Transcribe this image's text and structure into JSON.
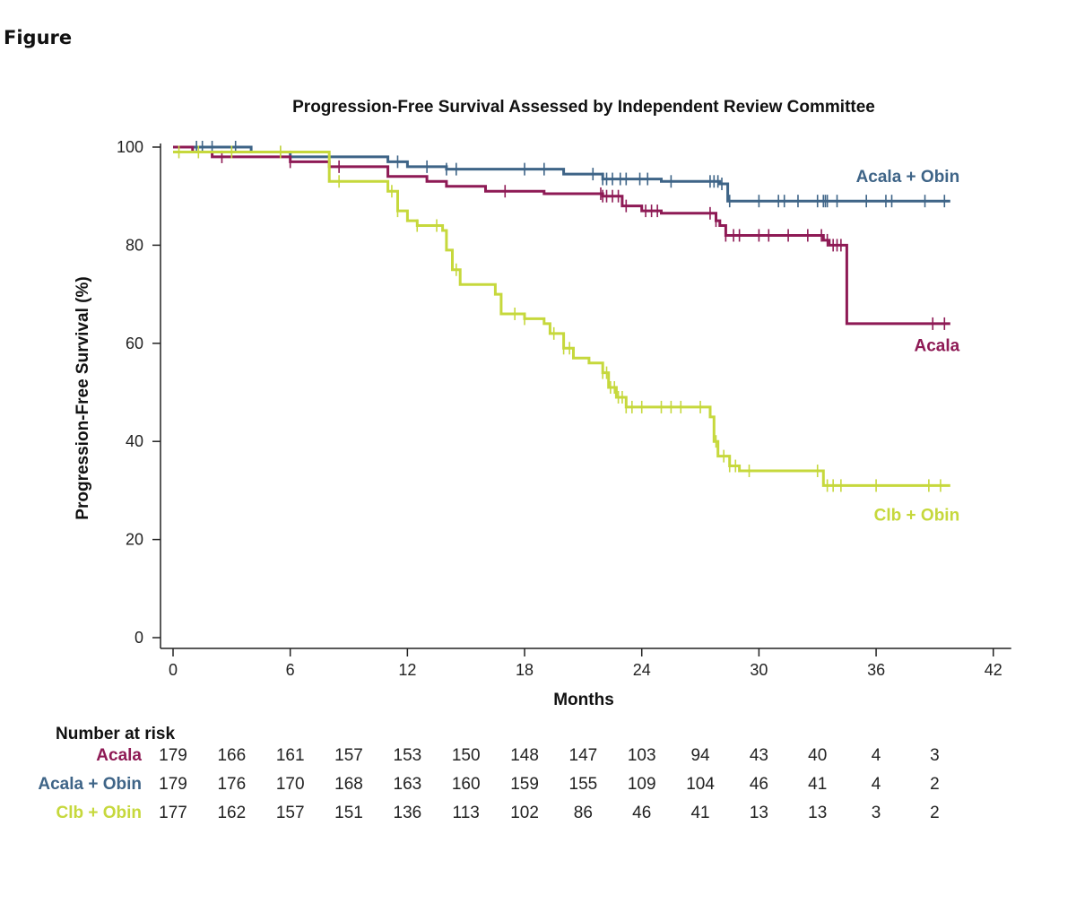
{
  "figure_label": "Figure",
  "chart_data": {
    "type": "line",
    "title": "Progression-Free Survival Assessed by Independent Review Committee",
    "xlabel": "Months",
    "ylabel": "Progression-Free Survival (%)",
    "xlim": [
      0,
      42
    ],
    "ylim": [
      0,
      100
    ],
    "xticks": [
      0,
      6,
      12,
      18,
      24,
      30,
      36,
      42
    ],
    "yticks": [
      0,
      20,
      40,
      60,
      80,
      100
    ],
    "series": [
      {
        "name": "Acala + Obin",
        "color": "#3e6487",
        "steps": [
          [
            0,
            100
          ],
          [
            4,
            99
          ],
          [
            6,
            98
          ],
          [
            11,
            97
          ],
          [
            12,
            96
          ],
          [
            14,
            95.5
          ],
          [
            20,
            94.5
          ],
          [
            22,
            93.5
          ],
          [
            25,
            93
          ],
          [
            28,
            92.5
          ],
          [
            28.4,
            89
          ],
          [
            39.8,
            89
          ]
        ],
        "censors": [
          1.2,
          1.5,
          2,
          3.2,
          5.5,
          6,
          11.5,
          13,
          14,
          14.5,
          18,
          19,
          21.5,
          22,
          22.2,
          22.5,
          22.9,
          23.2,
          23.9,
          24.3,
          25.5,
          27.5,
          27.7,
          27.9,
          28.1,
          28.5,
          30,
          31,
          31.3,
          32,
          33,
          33.3,
          33.4,
          33.5,
          34,
          35.5,
          36.5,
          36.8,
          38.5,
          39.5
        ],
        "label_pos": [
          40,
          94
        ]
      },
      {
        "name": "Acala",
        "color": "#8e1a55",
        "steps": [
          [
            0,
            100
          ],
          [
            1,
            99
          ],
          [
            2,
            98
          ],
          [
            6,
            97
          ],
          [
            8,
            96
          ],
          [
            11,
            94
          ],
          [
            13,
            93
          ],
          [
            14,
            92
          ],
          [
            16,
            91
          ],
          [
            19,
            90.5
          ],
          [
            22,
            90
          ],
          [
            23,
            88
          ],
          [
            24,
            87
          ],
          [
            25,
            86.5
          ],
          [
            27.5,
            86.5
          ],
          [
            27.8,
            85
          ],
          [
            28,
            84
          ],
          [
            28.3,
            82
          ],
          [
            33,
            82
          ],
          [
            33.3,
            81
          ],
          [
            33.6,
            80
          ],
          [
            34.4,
            80
          ],
          [
            34.5,
            64
          ],
          [
            39.8,
            64
          ]
        ],
        "censors": [
          2.5,
          6,
          8.5,
          17,
          21.9,
          22,
          22.2,
          22.5,
          22.8,
          23.2,
          24.2,
          24.5,
          24.8,
          27.5,
          27.8,
          28.3,
          28.7,
          29,
          30,
          30.5,
          31.5,
          32.5,
          33.2,
          33.5,
          33.8,
          34,
          34.2,
          38.9,
          39.5
        ],
        "label_pos": [
          40,
          59.5
        ]
      },
      {
        "name": "Clb + Obin",
        "color": "#c6d83c",
        "steps": [
          [
            0,
            99
          ],
          [
            8,
            93
          ],
          [
            11,
            91
          ],
          [
            11.5,
            87
          ],
          [
            12,
            85
          ],
          [
            12.5,
            84
          ],
          [
            13.8,
            83
          ],
          [
            14,
            79
          ],
          [
            14.3,
            75
          ],
          [
            14.7,
            72
          ],
          [
            16.5,
            70
          ],
          [
            16.8,
            66
          ],
          [
            18,
            65
          ],
          [
            19,
            64
          ],
          [
            19.3,
            62
          ],
          [
            20,
            59
          ],
          [
            20.5,
            57
          ],
          [
            21.3,
            56
          ],
          [
            22,
            54
          ],
          [
            22.3,
            51
          ],
          [
            22.7,
            49
          ],
          [
            23.2,
            47
          ],
          [
            27.5,
            45
          ],
          [
            27.7,
            40
          ],
          [
            27.9,
            37
          ],
          [
            28.5,
            35
          ],
          [
            29,
            34
          ],
          [
            33.3,
            31
          ],
          [
            39.8,
            31
          ]
        ],
        "censors": [
          0.3,
          1.3,
          3,
          5.5,
          8.5,
          11.2,
          11.5,
          12.5,
          13.5,
          14.5,
          17.5,
          18,
          19.5,
          20,
          20.3,
          22,
          22.2,
          22.4,
          22.6,
          22.8,
          23,
          23.2,
          23.5,
          24,
          25,
          25.5,
          26,
          27,
          27.8,
          28.2,
          28.5,
          28.8,
          29.5,
          33,
          33.5,
          33.8,
          34.2,
          36,
          38.7,
          39.3
        ],
        "label_pos": [
          40,
          25
        ]
      }
    ],
    "risk_table": {
      "title": "Number at risk",
      "times": [
        0,
        3,
        6,
        9,
        12,
        15,
        18,
        21,
        24,
        27,
        30,
        33,
        36,
        39
      ],
      "rows": [
        {
          "name": "Acala",
          "color": "#8e1a55",
          "values": [
            179,
            166,
            161,
            157,
            153,
            150,
            148,
            147,
            103,
            94,
            43,
            40,
            4,
            3
          ]
        },
        {
          "name": "Acala + Obin",
          "color": "#3e6487",
          "values": [
            179,
            176,
            170,
            168,
            163,
            160,
            159,
            155,
            109,
            104,
            46,
            41,
            4,
            2
          ]
        },
        {
          "name": "Clb + Obin",
          "color": "#c6d83c",
          "values": [
            177,
            162,
            157,
            151,
            136,
            113,
            102,
            86,
            46,
            41,
            13,
            13,
            3,
            2
          ]
        }
      ]
    }
  }
}
